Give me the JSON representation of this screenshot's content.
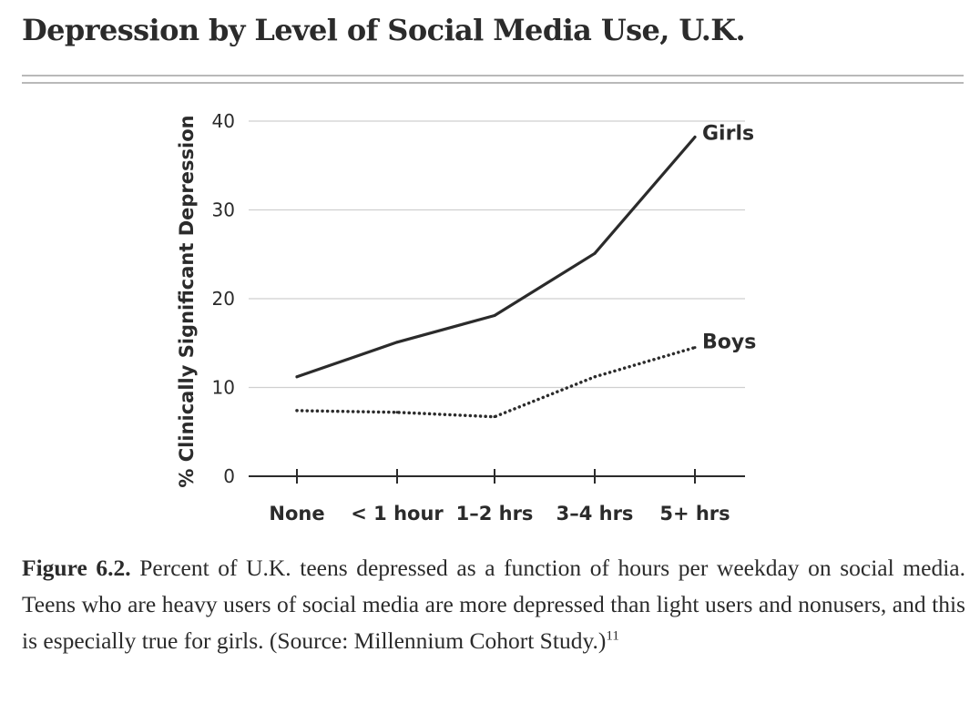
{
  "page": {
    "title": "Depression by Level of Social Media Use, U.K."
  },
  "caption": {
    "label": "Figure 6.2.",
    "text": " Percent of U.K. teens depressed as a function of hours per weekday on social media. Teens who are heavy users of social media are more depressed than light users and nonusers, and this is especially true for girls. (Source: Millennium Cohort Study.)",
    "footnote": "11"
  },
  "colors": {
    "line": "#2b2b2b",
    "grid": "#cfcfcf",
    "text": "#2b2b2b"
  },
  "chart_data": {
    "type": "line",
    "title": "",
    "xlabel": "",
    "ylabel": "% Clinically Significant Depression",
    "categories": [
      "None",
      "< 1 hour",
      "1–2 hrs",
      "3–4 hrs",
      "5+ hrs"
    ],
    "ylim": [
      0,
      40
    ],
    "yticks": [
      "0",
      "10",
      "20",
      "30",
      "40"
    ],
    "grid": true,
    "legend": "labels at line ends",
    "series": [
      {
        "name": "Girls",
        "style": "solid",
        "values": [
          11.2,
          15.1,
          18.1,
          25.1,
          38.2
        ]
      },
      {
        "name": "Boys",
        "style": "dotted",
        "values": [
          7.4,
          7.2,
          6.7,
          11.2,
          14.5
        ]
      }
    ]
  }
}
